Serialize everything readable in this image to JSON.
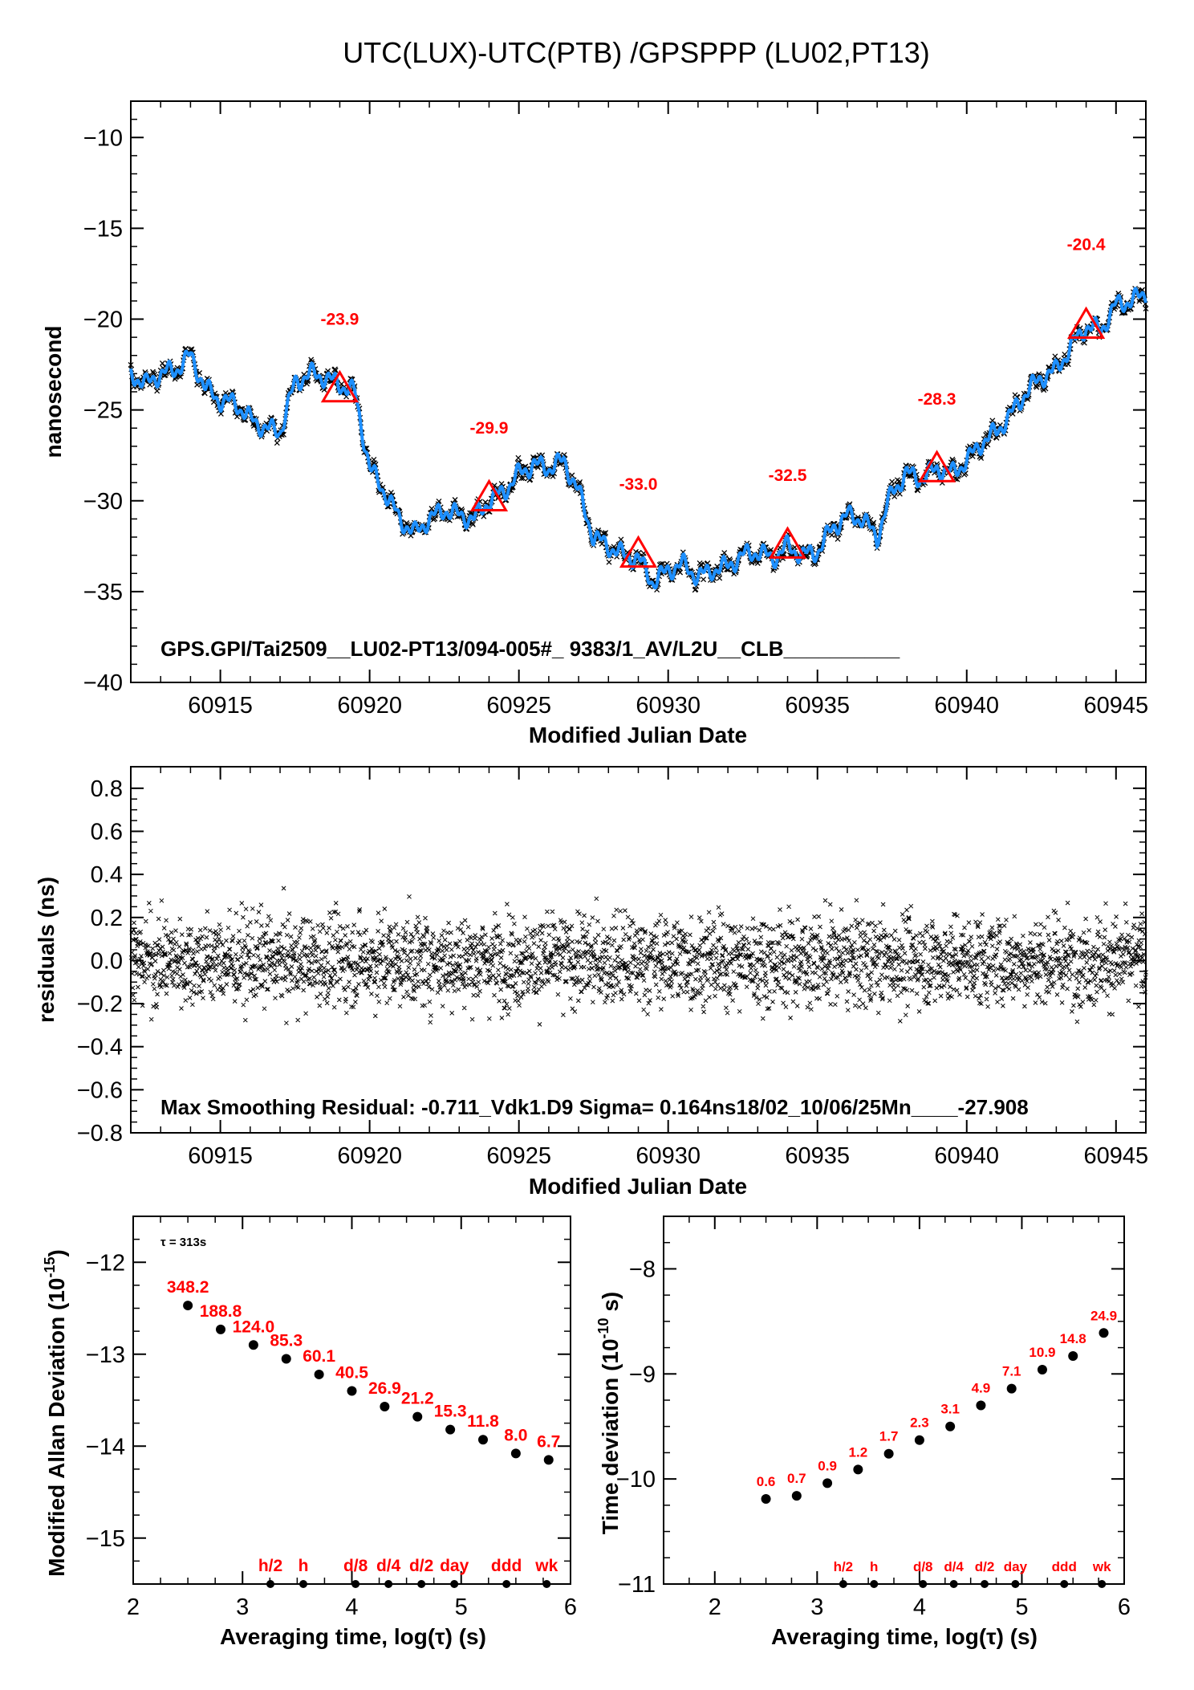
{
  "title": "UTC(LUX)-UTC(PTB)  /GPSPPP  (LU02,PT13)",
  "colors": {
    "smooth": "#1e90ff",
    "raw": "#000000",
    "marker": "#ff0000",
    "point": "#000000"
  },
  "chart_data": [
    {
      "type": "line",
      "xlabel": "Modified Julian Date",
      "ylabel": "nanosecond",
      "xlim": [
        60912,
        60946
      ],
      "ylim": [
        -40,
        -8
      ],
      "xticks": [
        "60915",
        "60920",
        "60925",
        "60930",
        "60935",
        "60940",
        "60945"
      ],
      "yticks": [
        "−10",
        "−15",
        "−20",
        "−25",
        "−30",
        "−35",
        "−40"
      ],
      "annotation": "GPS.GPI/Tai2509__LU02-PT13/094-005#_  9383/1_AV/L2U__CLB__________",
      "series": [
        {
          "x": [
            60912,
            60912.5,
            60913,
            60913.5,
            60914,
            60914.5,
            60915,
            60915.5,
            60916,
            60916.5,
            60917,
            60917.5,
            60918,
            60918.5,
            60919,
            60919.5,
            60920,
            60920.5,
            60921,
            60921.5,
            60922,
            60922.5,
            60923,
            60923.5,
            60924,
            60924.5,
            60925,
            60925.5,
            60926,
            60926.5,
            60927,
            60927.5,
            60928,
            60928.5,
            60929,
            60929.5,
            60930,
            60930.5,
            60931,
            60931.5,
            60932,
            60932.5,
            60933,
            60933.5,
            60934,
            60934.5,
            60935,
            60935.5,
            60936,
            60936.5,
            60937,
            60937.5,
            60938,
            60938.5,
            60939,
            60939.5,
            60940,
            60940.5,
            60941,
            60941.5,
            60942,
            60942.5,
            60943,
            60943.5,
            60944,
            60944.5,
            60945,
            60945.5,
            60946
          ],
          "y": [
            -23.0,
            -23.6,
            -23.0,
            -22.8,
            -22.0,
            -23.8,
            -24.5,
            -24.6,
            -25.5,
            -26.0,
            -26.2,
            -23.5,
            -23.0,
            -23.2,
            -23.6,
            -24.0,
            -28.2,
            -29.5,
            -31.0,
            -31.8,
            -31.0,
            -30.5,
            -30.8,
            -31.0,
            -30.0,
            -29.5,
            -28.5,
            -28.0,
            -28.2,
            -27.8,
            -29.5,
            -32.0,
            -32.5,
            -33.0,
            -33.2,
            -34.5,
            -33.8,
            -33.5,
            -34.2,
            -33.8,
            -33.6,
            -33.0,
            -32.8,
            -33.2,
            -32.5,
            -33.0,
            -32.8,
            -31.5,
            -30.8,
            -31.0,
            -32.0,
            -29.5,
            -28.5,
            -28.8,
            -28.2,
            -28.5,
            -27.8,
            -26.8,
            -26.2,
            -25.2,
            -24.0,
            -23.2,
            -22.8,
            -21.5,
            -20.4,
            -20.6,
            -19.2,
            -19.0,
            -18.6
          ]
        }
      ],
      "markers": [
        {
          "x": 60919,
          "y": -23.9,
          "label": "-23.9"
        },
        {
          "x": 60924,
          "y": -29.9,
          "label": "-29.9"
        },
        {
          "x": 60929,
          "y": -33.0,
          "label": "-33.0"
        },
        {
          "x": 60934,
          "y": -32.5,
          "label": "-32.5"
        },
        {
          "x": 60939,
          "y": -28.3,
          "label": "-28.3"
        },
        {
          "x": 60944,
          "y": -20.4,
          "label": "-20.4"
        }
      ]
    },
    {
      "type": "scatter",
      "xlabel": "Modified Julian Date",
      "ylabel": "residuals (ns)",
      "xlim": [
        60912,
        60946
      ],
      "ylim": [
        -0.8,
        0.9
      ],
      "xticks": [
        "60915",
        "60920",
        "60925",
        "60930",
        "60935",
        "60940",
        "60945"
      ],
      "yticks": [
        "0.8",
        "0.6",
        "0.4",
        "0.2",
        "0.0",
        "−0.2",
        "−0.4",
        "−0.6",
        "−0.8"
      ],
      "annotation": "Max Smoothing Residual: -0.711_Vdk1.D9  Sigma= 0.164ns18/02_10/06/25Mn____-27.908",
      "sigma": 0.164,
      "max_residual": -0.711
    },
    {
      "type": "scatter",
      "xlabel": "Averaging time, log(τ) (s)",
      "ylabel": "Modified Allan Deviation (10",
      "ylabel_sup": "-15",
      "ylabel_tail": ")",
      "xlim": [
        2,
        6
      ],
      "ylim": [
        -15.5,
        -11.5
      ],
      "xticks": [
        "2",
        "3",
        "4",
        "5",
        "6"
      ],
      "yticks": [
        "−12",
        "−13",
        "−14",
        "−15"
      ],
      "tau_note": "τ = 313s",
      "x": [
        2.5,
        2.8,
        3.1,
        3.4,
        3.7,
        4.0,
        4.3,
        4.6,
        4.9,
        5.2,
        5.5,
        5.8
      ],
      "y": [
        -12.47,
        -12.73,
        -12.9,
        -13.05,
        -13.22,
        -13.4,
        -13.57,
        -13.68,
        -13.82,
        -13.93,
        -14.08,
        -14.15
      ],
      "labels": [
        "348.2",
        "188.8",
        "124.0",
        "85.3",
        "60.1",
        "40.5",
        "26.9",
        "21.2",
        "15.3",
        "11.8",
        "8.0",
        "6.7"
      ],
      "time_marks": [
        {
          "x": 3.255,
          "label": "h/2"
        },
        {
          "x": 3.556,
          "label": "h"
        },
        {
          "x": 4.034,
          "label": "d/8"
        },
        {
          "x": 4.335,
          "label": "d/4"
        },
        {
          "x": 4.636,
          "label": "d/2"
        },
        {
          "x": 4.937,
          "label": "day"
        },
        {
          "x": 5.414,
          "label": "ddd"
        },
        {
          "x": 5.782,
          "label": "wk"
        }
      ]
    },
    {
      "type": "scatter",
      "xlabel": "Averaging time, log(τ) (s)",
      "ylabel": "Time deviation (10",
      "ylabel_sup": "-10",
      "ylabel_tail": " s)",
      "xlim": [
        1.5,
        6
      ],
      "ylim": [
        -11,
        -7.5
      ],
      "xticks": [
        "2",
        "3",
        "4",
        "5",
        "6"
      ],
      "yticks": [
        "−8",
        "−9",
        "−10",
        "−11"
      ],
      "x": [
        2.5,
        2.8,
        3.1,
        3.4,
        3.7,
        4.0,
        4.3,
        4.6,
        4.9,
        5.2,
        5.5,
        5.8
      ],
      "y": [
        -10.19,
        -10.16,
        -10.04,
        -9.91,
        -9.76,
        -9.63,
        -9.5,
        -9.3,
        -9.14,
        -8.96,
        -8.83,
        -8.61
      ],
      "labels": [
        "0.6",
        "0.7",
        "0.9",
        "1.2",
        "1.7",
        "2.3",
        "3.1",
        "4.9",
        "7.1",
        "10.9",
        "14.8",
        "24.9"
      ],
      "time_marks": [
        {
          "x": 3.255,
          "label": "h/2"
        },
        {
          "x": 3.556,
          "label": "h"
        },
        {
          "x": 4.034,
          "label": "d/8"
        },
        {
          "x": 4.335,
          "label": "d/4"
        },
        {
          "x": 4.636,
          "label": "d/2"
        },
        {
          "x": 4.937,
          "label": "day"
        },
        {
          "x": 5.414,
          "label": "ddd"
        },
        {
          "x": 5.782,
          "label": "wk"
        }
      ]
    }
  ]
}
